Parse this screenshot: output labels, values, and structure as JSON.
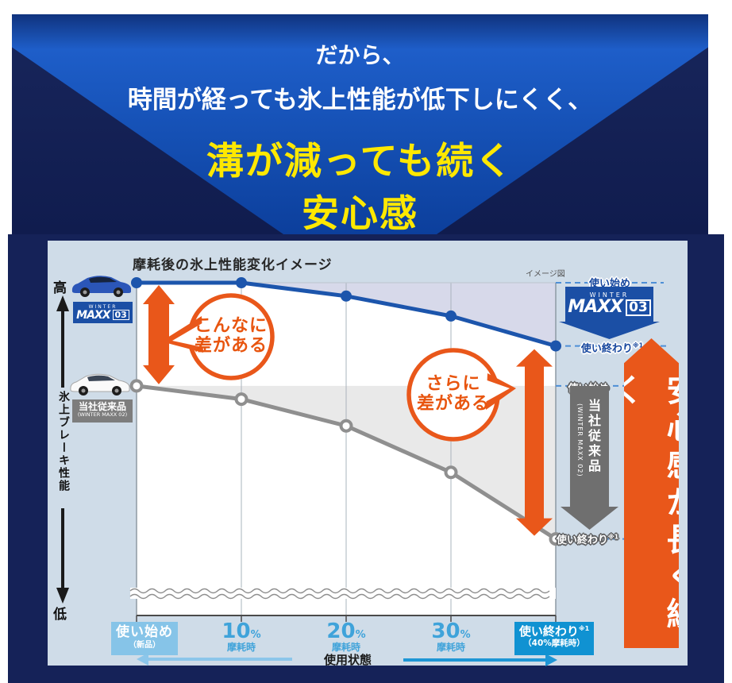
{
  "banner": {
    "line1": "だから、",
    "line2": "時間が経っても氷上性能が低下しにくく、",
    "line3": "溝が減っても続く",
    "line4": "安心感"
  },
  "chart_panel": {
    "title": "摩耗後の氷上性能変化イメージ",
    "note": "イメージ図",
    "y_axis": {
      "high": "高",
      "label": "氷上ブレーキ性能",
      "low": "低"
    },
    "x_axis": {
      "label": "使用状態",
      "start_badge": {
        "main": "使い始め",
        "sub": "（新品）"
      },
      "ticks": [
        {
          "num": "10",
          "unit": "%",
          "sub": "摩耗時"
        },
        {
          "num": "20",
          "unit": "%",
          "sub": "摩耗時"
        },
        {
          "num": "30",
          "unit": "%",
          "sub": "摩耗時"
        }
      ],
      "end_badge": {
        "main": "使い終わり",
        "sup": "※1",
        "sub": "（40%摩耗時）"
      }
    },
    "maxx03_logo": {
      "small": "WINTER",
      "main": "MAXX",
      "num": "03"
    },
    "conventional_badge": {
      "line1": "当社従来品",
      "line2": "(WINTER MAXX 02)"
    },
    "right_labels": {
      "blue_start": "使い始め",
      "blue_end": "使い終わり",
      "blue_end_sup": "※1",
      "gray_start": "使い始め",
      "gray_end": "使い終わり",
      "gray_end_sup": "※1"
    },
    "gray_arrow": {
      "vertical_main": "当社従来品",
      "vertical_sub": "(WINTER MAXX 02)"
    },
    "bubbles": [
      {
        "line1": "こんなに",
        "line2": "差がある"
      },
      {
        "line1": "さらに",
        "line2": "差がある"
      }
    ],
    "side_banner": "安心感が長く続く"
  },
  "colors": {
    "accent_orange": "#e9571a",
    "line_blue": "#1c55ac",
    "line_gray": "#8f8f8f",
    "fill_lavender": "#d7d9ea",
    "fill_gray": "#e9e9e9",
    "navy": "#152258",
    "panel_bg": "#cfdce8",
    "banner_yellow": "#ffe800",
    "badge_blue": "#1b4fa5",
    "badge_gray": "#7d7d7d",
    "axis_start_badge": "#86c4e8",
    "axis_end_badge": "#1092d2"
  },
  "chart_data": {
    "type": "line",
    "title": "摩耗後の氷上性能変化イメージ",
    "note": "イメージ図",
    "x_categories": [
      "使い始め（新品）",
      "10%摩耗時",
      "20%摩耗時",
      "30%摩耗時",
      "使い終わり※1（40%摩耗時）"
    ],
    "xlabel": "使用状態",
    "ylabel": "氷上ブレーキ性能（高→低）",
    "ylim": [
      0,
      100
    ],
    "grid": "vertical",
    "series": [
      {
        "name": "WINTER MAXX 03",
        "color": "#1c55ac",
        "marker": "filled",
        "values": [
          100,
          100,
          96,
          90,
          81
        ]
      },
      {
        "name": "当社従来品（WINTER MAXX 02）",
        "color": "#8f8f8f",
        "marker": "open",
        "values": [
          69,
          65,
          57,
          43,
          23
        ]
      }
    ],
    "annotations": [
      "こんなに差がある",
      "さらに差がある",
      "安心感が長く続く"
    ]
  }
}
